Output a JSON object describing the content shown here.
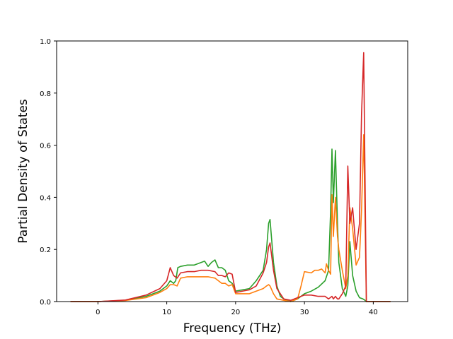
{
  "chart_data": {
    "type": "line",
    "title": "",
    "xlabel": "Frequency (THz)",
    "ylabel": "Partial Density of States",
    "xlim": [
      -6,
      45
    ],
    "ylim": [
      0,
      1.0
    ],
    "xticks": [
      0,
      10,
      20,
      30,
      40
    ],
    "yticks": [
      0.0,
      0.2,
      0.4,
      0.6,
      0.8,
      1.0
    ],
    "ytick_labels": [
      "0.0",
      "0.2",
      "0.4",
      "0.6",
      "0.8",
      "1.0"
    ],
    "grid": false,
    "legend": "none",
    "series": [
      {
        "color": "#2ca02c",
        "x": [
          -4,
          0,
          4,
          7,
          9,
          10,
          10.5,
          11,
          11.3,
          11.6,
          12,
          13,
          14,
          15,
          15.5,
          16,
          16.5,
          17,
          17.5,
          18,
          18.5,
          19,
          19.5,
          20,
          22,
          23,
          24,
          24.5,
          24.8,
          25,
          25.5,
          26,
          26.5,
          27,
          28,
          29,
          30,
          31,
          32,
          33,
          33.5,
          33.8,
          34,
          34.2,
          34.5,
          34.8,
          35,
          35.5,
          36,
          36.3,
          36.6,
          37,
          37.5,
          38,
          38.5,
          38.8,
          39,
          39.5,
          40,
          42.5
        ],
        "y": [
          0.0,
          0.0,
          0.005,
          0.02,
          0.04,
          0.06,
          0.08,
          0.07,
          0.08,
          0.13,
          0.135,
          0.14,
          0.14,
          0.15,
          0.155,
          0.135,
          0.15,
          0.16,
          0.13,
          0.13,
          0.12,
          0.08,
          0.07,
          0.04,
          0.05,
          0.08,
          0.12,
          0.2,
          0.3,
          0.315,
          0.15,
          0.06,
          0.02,
          0.01,
          0.0,
          0.01,
          0.03,
          0.04,
          0.055,
          0.08,
          0.12,
          0.35,
          0.585,
          0.38,
          0.58,
          0.3,
          0.15,
          0.05,
          0.02,
          0.06,
          0.23,
          0.1,
          0.04,
          0.015,
          0.01,
          0.005,
          0.0,
          0.0,
          0.0,
          0.0
        ]
      },
      {
        "color": "#ff7f0e",
        "x": [
          -4,
          0,
          4,
          7,
          9,
          10,
          10.5,
          11,
          11.5,
          12,
          13,
          14,
          15,
          16,
          17,
          18,
          18.5,
          19,
          19.5,
          20,
          22,
          23,
          24,
          24.5,
          24.8,
          25,
          25.5,
          26,
          27,
          28,
          29,
          29.5,
          30,
          31,
          31.5,
          32,
          32.5,
          33,
          33.2,
          33.5,
          33.8,
          34,
          34.2,
          34.5,
          34.8,
          35,
          35.5,
          36,
          36.3,
          36.6,
          37,
          37.5,
          38,
          38.3,
          38.6,
          39,
          39.5,
          40,
          42.5
        ],
        "y": [
          0.0,
          0.0,
          0.004,
          0.015,
          0.035,
          0.05,
          0.065,
          0.065,
          0.06,
          0.09,
          0.095,
          0.095,
          0.095,
          0.095,
          0.09,
          0.07,
          0.07,
          0.06,
          0.065,
          0.03,
          0.03,
          0.04,
          0.05,
          0.06,
          0.065,
          0.06,
          0.03,
          0.01,
          0.005,
          0.0,
          0.01,
          0.06,
          0.115,
          0.11,
          0.12,
          0.12,
          0.125,
          0.11,
          0.145,
          0.12,
          0.105,
          0.41,
          0.25,
          0.4,
          0.25,
          0.2,
          0.12,
          0.05,
          0.1,
          0.36,
          0.28,
          0.14,
          0.17,
          0.35,
          0.64,
          0.0,
          0.0,
          0.0,
          0.0
        ]
      },
      {
        "color": "#d62728",
        "x": [
          -4,
          0,
          4,
          7,
          9,
          10,
          10.5,
          11,
          11.5,
          12,
          13,
          14,
          15,
          16,
          17,
          17.5,
          18,
          18.5,
          19,
          19.5,
          20,
          22,
          23,
          24,
          24.5,
          24.8,
          25,
          25.5,
          26,
          27,
          28,
          29,
          30,
          31,
          32,
          33,
          33.5,
          34,
          34.2,
          34.5,
          34.8,
          35,
          35.5,
          36,
          36.3,
          36.6,
          37,
          37.5,
          38,
          38.3,
          38.6,
          39,
          39.5,
          40,
          42.5
        ],
        "y": [
          0.0,
          0.0,
          0.006,
          0.025,
          0.05,
          0.08,
          0.13,
          0.1,
          0.09,
          0.11,
          0.115,
          0.115,
          0.12,
          0.12,
          0.115,
          0.1,
          0.1,
          0.095,
          0.11,
          0.105,
          0.035,
          0.045,
          0.06,
          0.11,
          0.15,
          0.21,
          0.225,
          0.12,
          0.05,
          0.01,
          0.005,
          0.015,
          0.025,
          0.025,
          0.02,
          0.02,
          0.01,
          0.02,
          0.01,
          0.02,
          0.01,
          0.01,
          0.03,
          0.06,
          0.52,
          0.3,
          0.36,
          0.2,
          0.3,
          0.72,
          0.955,
          0.0,
          0.0,
          0.0,
          0.0
        ]
      }
    ]
  }
}
